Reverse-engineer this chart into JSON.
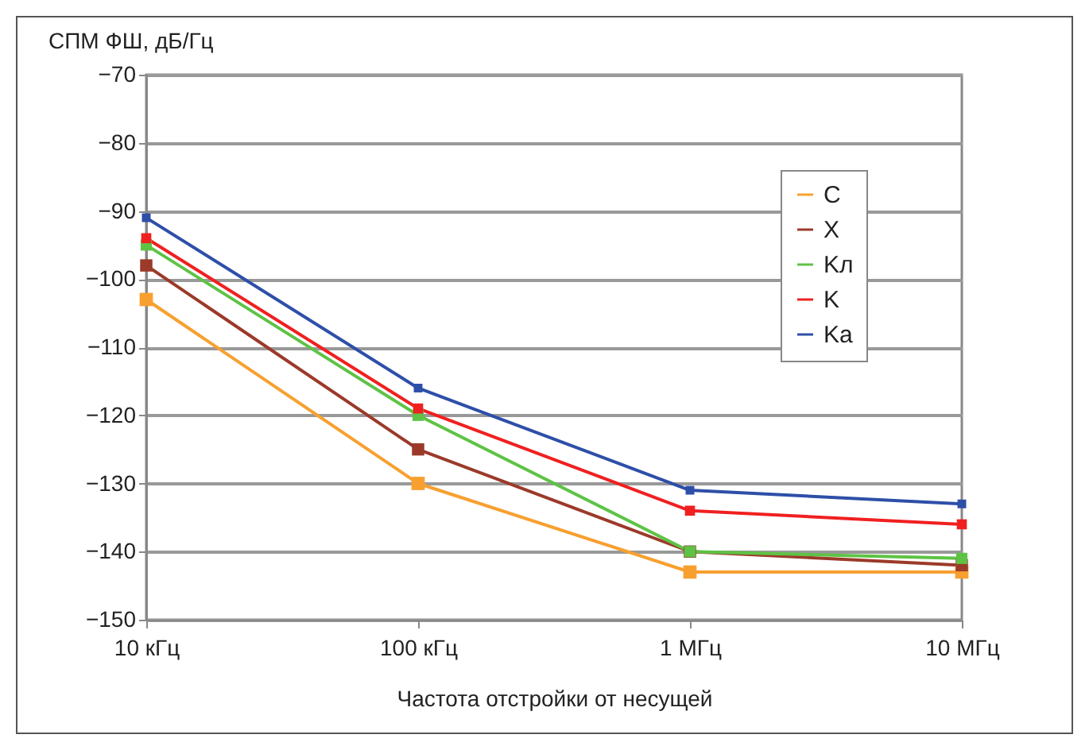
{
  "chart_data": {
    "type": "line",
    "ylabel": "СПМ ФШ, дБ/Гц",
    "xlabel": "Частота отстройки от несущей",
    "categories": [
      "10 кГц",
      "100 кГц",
      "1 МГц",
      "10 МГц"
    ],
    "series": [
      {
        "name": "C",
        "color": "#f7a030",
        "values": [
          -103,
          -130,
          -143,
          -143
        ]
      },
      {
        "name": "X",
        "color": "#9b3a2a",
        "values": [
          -98,
          -125,
          -140,
          -142
        ]
      },
      {
        "name": "Kл",
        "color": "#5ec345",
        "values": [
          -95,
          -120,
          -140,
          -141
        ]
      },
      {
        "name": "K",
        "color": "#f02020",
        "values": [
          -94,
          -119,
          -134,
          -136
        ]
      },
      {
        "name": "Ka",
        "color": "#2e4fa8",
        "values": [
          -91,
          -116,
          -131,
          -133
        ]
      }
    ],
    "ylim": [
      -150,
      -70
    ],
    "yticks": [
      -150,
      -140,
      -130,
      -120,
      -110,
      -100,
      -90,
      -80,
      -70
    ],
    "grid": "y",
    "legend": "top right",
    "marker": "square",
    "line_style": "solid"
  }
}
